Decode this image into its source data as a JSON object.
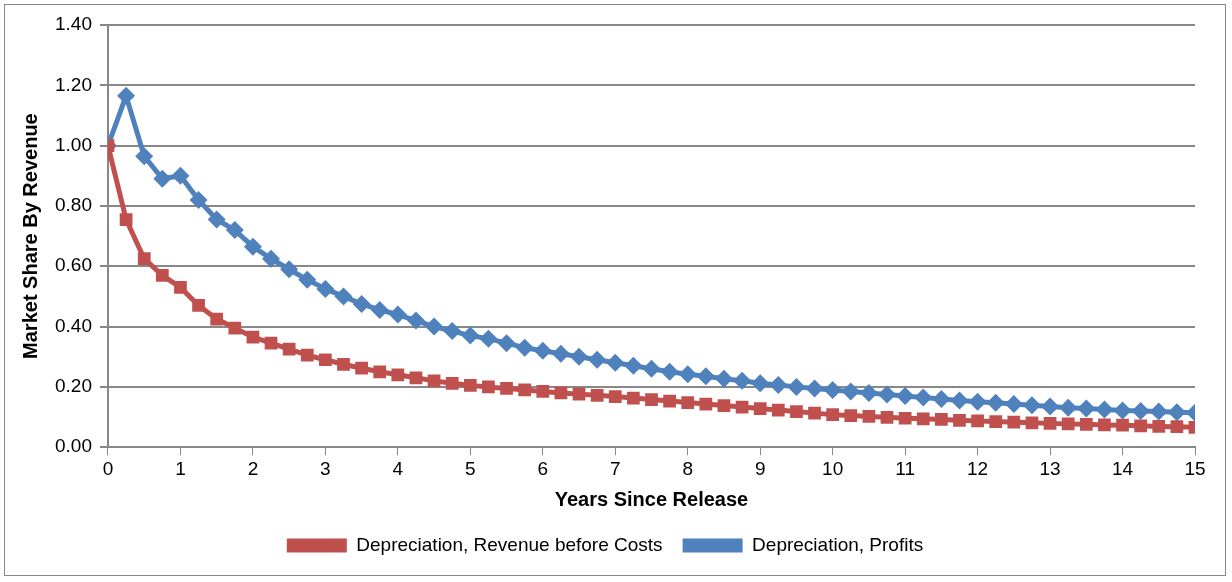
{
  "chart_data": {
    "type": "line",
    "xlabel": "Years Since Release",
    "ylabel": "Market Share By Revenue",
    "x": [
      0,
      0.25,
      0.5,
      0.75,
      1,
      1.25,
      1.5,
      1.75,
      2,
      2.25,
      2.5,
      2.75,
      3,
      3.25,
      3.5,
      3.75,
      4,
      4.25,
      4.5,
      4.75,
      5,
      5.25,
      5.5,
      5.75,
      6,
      6.25,
      6.5,
      6.75,
      7,
      7.25,
      7.5,
      7.75,
      8,
      8.25,
      8.5,
      8.75,
      9,
      9.25,
      9.5,
      9.75,
      10,
      10.25,
      10.5,
      10.75,
      11,
      11.25,
      11.5,
      11.75,
      12,
      12.25,
      12.5,
      12.75,
      13,
      13.25,
      13.5,
      13.75,
      14,
      14.25,
      14.5,
      14.75,
      15
    ],
    "series": [
      {
        "name": "Depreciation, Revenue before Costs",
        "color": "#c0504d",
        "marker": "square",
        "values": [
          1.0,
          0.755,
          0.625,
          0.57,
          0.53,
          0.47,
          0.425,
          0.395,
          0.365,
          0.345,
          0.325,
          0.305,
          0.29,
          0.275,
          0.262,
          0.25,
          0.24,
          0.23,
          0.22,
          0.212,
          0.205,
          0.2,
          0.195,
          0.19,
          0.185,
          0.18,
          0.176,
          0.172,
          0.168,
          0.163,
          0.158,
          0.153,
          0.148,
          0.143,
          0.138,
          0.133,
          0.128,
          0.123,
          0.118,
          0.113,
          0.108,
          0.105,
          0.102,
          0.099,
          0.096,
          0.094,
          0.092,
          0.089,
          0.087,
          0.085,
          0.083,
          0.081,
          0.079,
          0.077,
          0.076,
          0.074,
          0.073,
          0.071,
          0.069,
          0.068,
          0.066
        ]
      },
      {
        "name": "Depreciation, Profits",
        "color": "#4f81bd",
        "marker": "diamond",
        "values": [
          1.0,
          1.165,
          0.965,
          0.89,
          0.9,
          0.82,
          0.755,
          0.72,
          0.665,
          0.625,
          0.59,
          0.555,
          0.525,
          0.5,
          0.475,
          0.455,
          0.44,
          0.42,
          0.4,
          0.385,
          0.37,
          0.36,
          0.345,
          0.33,
          0.32,
          0.31,
          0.3,
          0.29,
          0.28,
          0.27,
          0.26,
          0.25,
          0.242,
          0.235,
          0.227,
          0.22,
          0.212,
          0.206,
          0.2,
          0.195,
          0.19,
          0.185,
          0.18,
          0.175,
          0.17,
          0.165,
          0.16,
          0.155,
          0.151,
          0.147,
          0.143,
          0.139,
          0.135,
          0.131,
          0.128,
          0.125,
          0.122,
          0.12,
          0.118,
          0.116,
          0.114
        ]
      }
    ],
    "xlim": [
      0,
      15
    ],
    "xticks": [
      0,
      1,
      2,
      3,
      4,
      5,
      6,
      7,
      8,
      9,
      10,
      11,
      12,
      13,
      14,
      15
    ],
    "ylim": [
      0,
      1.4
    ],
    "yticks": [
      {
        "value": 0,
        "label": "0.00"
      },
      {
        "value": 0.2,
        "label": "0.20"
      },
      {
        "value": 0.4,
        "label": "0.40"
      },
      {
        "value": 0.6,
        "label": "0.60"
      },
      {
        "value": 0.8,
        "label": "0.80"
      },
      {
        "value": 1.0,
        "label": "1.00"
      },
      {
        "value": 1.2,
        "label": "1.20"
      },
      {
        "value": 1.4,
        "label": "1.40"
      }
    ],
    "grid": "y",
    "legend": "bottom",
    "line_style": "solid"
  }
}
